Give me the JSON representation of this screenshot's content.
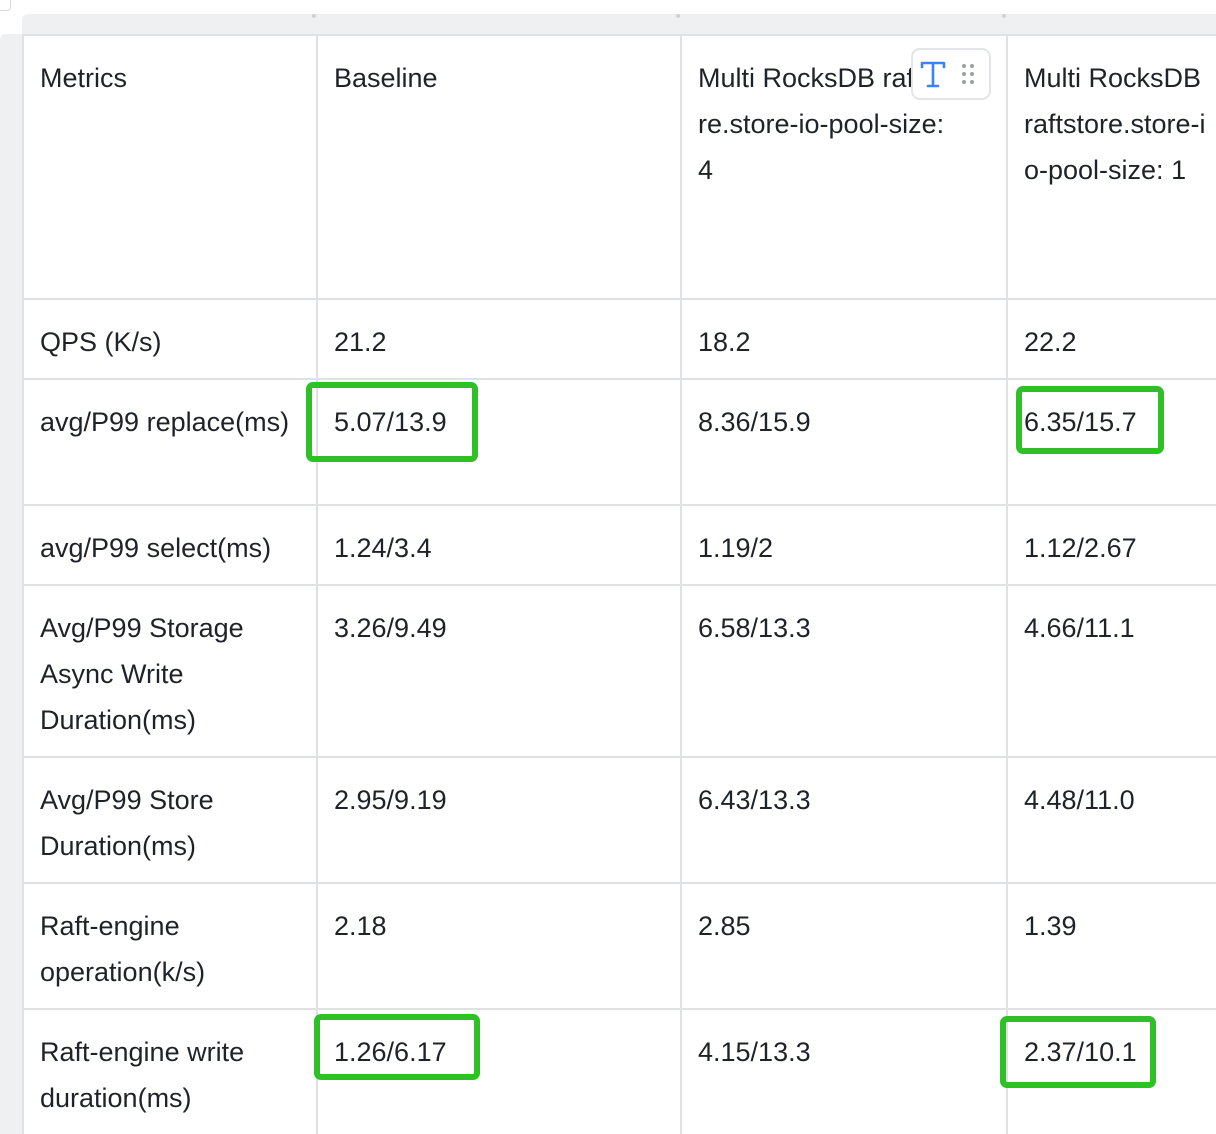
{
  "table": {
    "headers": [
      "Metrics",
      "Baseline",
      "Multi RocksDB raftstore.store-io-pool-size: 4",
      "Multi RocksDB raftstore.store-io-pool-size: 1"
    ],
    "rows": [
      [
        "QPS (K/s)",
        "21.2",
        "18.2",
        "22.2"
      ],
      [
        "avg/P99 replace(ms)",
        "5.07/13.9",
        "8.36/15.9",
        "6.35/15.7"
      ],
      [
        "avg/P99 select(ms)",
        "1.24/3.4",
        "1.19/2",
        "1.12/2.67"
      ],
      [
        "Avg/P99 Storage Async Write Duration(ms)",
        "3.26/9.49",
        "6.58/13.3",
        "4.66/11.1"
      ],
      [
        "Avg/P99 Store Duration(ms)",
        "2.95/9.19",
        "6.43/13.3",
        "4.48/11.0"
      ],
      [
        "Raft-engine operation(k/s)",
        "2.18",
        "2.85",
        "1.39"
      ],
      [
        "Raft-engine write duration(ms)",
        "1.26/6.17",
        "4.15/13.3",
        "2.37/10.1"
      ]
    ],
    "highlighted_cells": [
      "5.07/13.9",
      "6.35/15.7",
      "1.26/6.17",
      "2.37/10.1"
    ]
  },
  "toolbar": {
    "text_icon": "text-format-icon",
    "drag_icon": "drag-handle-icon"
  },
  "colors": {
    "highlight": "#2fbf26",
    "border": "#dfe1e3",
    "text": "#1f2328",
    "icon_blue": "#3b82f6"
  }
}
